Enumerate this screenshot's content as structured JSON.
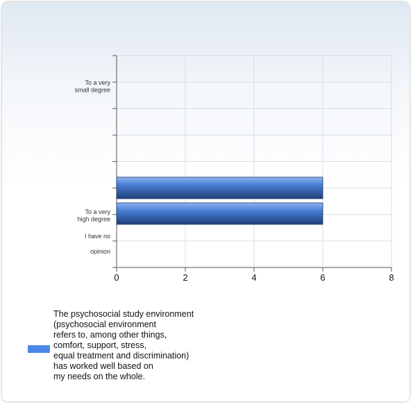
{
  "chart_data": {
    "type": "bar",
    "orientation": "horizontal",
    "categories": [
      "To a very small degree",
      "",
      "",
      "",
      "",
      "To a very high degree",
      "I have no opinion"
    ],
    "category_tick_labels": [
      "To a very\nsmall degree",
      "To a very\nhigh degree",
      "I have no",
      "opinion"
    ],
    "bars": [
      {
        "label": "",
        "value": 6
      },
      {
        "label": "",
        "value": 6
      }
    ],
    "series": [
      {
        "name": "The psychosocial study environment\n(psychosocial environment\nrefers to, among other things,\ncomfort, support, stress,\nequal treatment and discrimination)\nhas worked well based on\nmy needs on the whole.",
        "color": "#4a87e8"
      }
    ],
    "xticks": [
      0,
      2,
      4,
      6,
      8
    ],
    "xlim": [
      0,
      8
    ],
    "grid": true,
    "legend_position": "bottom-left",
    "bar_color": "#3d6fbe"
  }
}
